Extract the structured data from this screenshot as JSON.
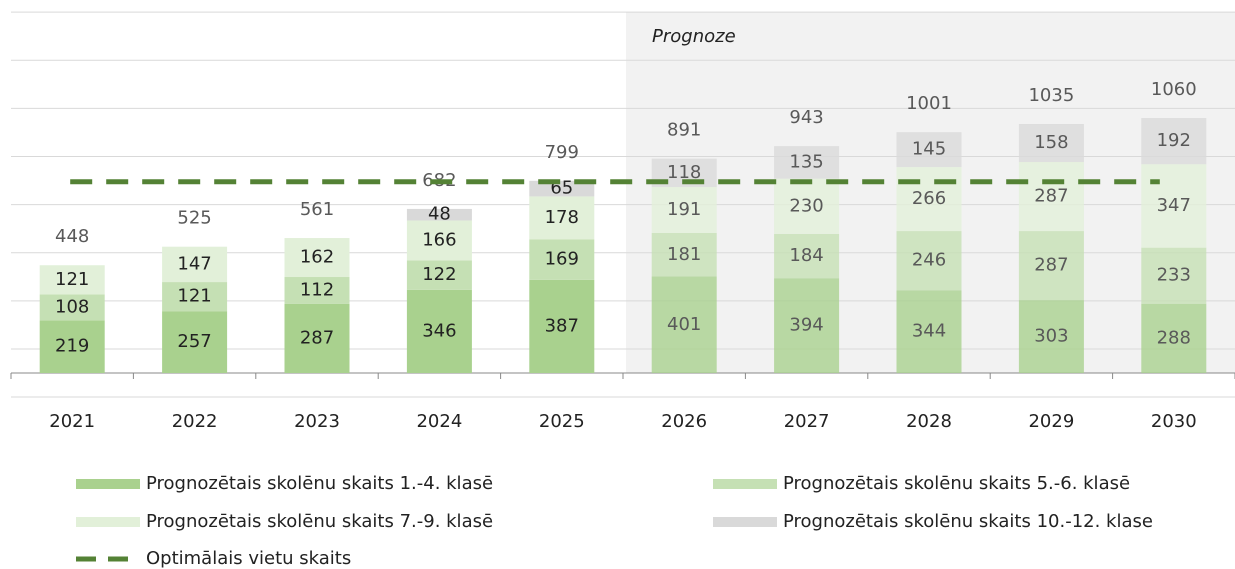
{
  "chart_data": {
    "type": "stacked_bar",
    "categories": [
      "2021",
      "2022",
      "2023",
      "2024",
      "2025",
      "2026",
      "2027",
      "2028",
      "2029",
      "2030"
    ],
    "series": [
      {
        "name": "Prognozētais skolēnu skaits 1.-4. klasē",
        "color": "#a9d18e",
        "values": [
          219,
          257,
          287,
          346,
          387,
          401,
          394,
          344,
          303,
          288
        ]
      },
      {
        "name": "Prognozētais skolēnu skaits 5.-6. klasē",
        "color": "#c5e0b4",
        "values": [
          108,
          121,
          112,
          122,
          169,
          181,
          184,
          246,
          287,
          233
        ]
      },
      {
        "name": "Prognozētais skolēnu skaits 7.-9. klasē",
        "color": "#e2f0d9",
        "values": [
          121,
          147,
          162,
          166,
          178,
          191,
          230,
          266,
          287,
          347
        ]
      },
      {
        "name": "Prognozētais skolēnu skaits 10.-12. klase",
        "color": "#d9d9d9",
        "values": [
          null,
          null,
          null,
          48,
          65,
          118,
          135,
          145,
          158,
          192
        ]
      }
    ],
    "totals": [
      448,
      525,
      561,
      682,
      799,
      891,
      943,
      1001,
      1035,
      1060
    ],
    "reference_line": {
      "name": "Optimālais vietu skaits",
      "color": "#548235",
      "value": 795
    },
    "forecast": {
      "label": "Prognoze",
      "from": "2026",
      "color": "#f2f2f2"
    },
    "ylim": [
      -100,
      1500
    ],
    "yticks": [
      -100,
      100,
      300,
      500,
      700,
      900,
      1100,
      1300,
      1500
    ],
    "grid": true
  }
}
